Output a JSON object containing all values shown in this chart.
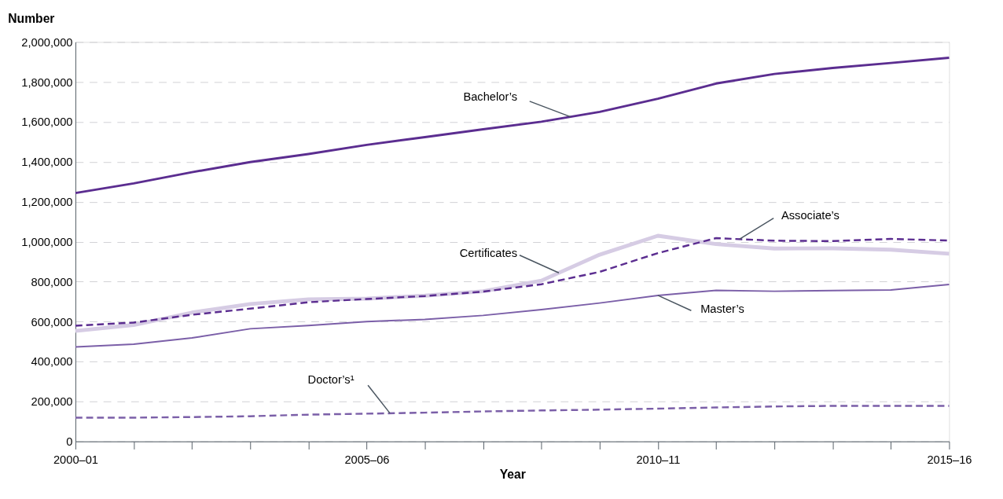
{
  "chart_data": {
    "type": "line",
    "xlabel": "Year",
    "ylabel": "Number",
    "categories": [
      "2000–01",
      null,
      null,
      null,
      null,
      "2005–06",
      null,
      null,
      null,
      null,
      "2010–11",
      null,
      null,
      null,
      null,
      "2015–16"
    ],
    "ylim": [
      0,
      2000000
    ],
    "yticks": [
      {
        "value": 0,
        "label": "0"
      },
      {
        "value": 200000,
        "label": "200,000"
      },
      {
        "value": 400000,
        "label": "400,000"
      },
      {
        "value": 600000,
        "label": "600,000"
      },
      {
        "value": 800000,
        "label": "800,000"
      },
      {
        "value": 1000000,
        "label": "1,000,000"
      },
      {
        "value": 1200000,
        "label": "1,200,000"
      },
      {
        "value": 1400000,
        "label": "1,400,000"
      },
      {
        "value": 1600000,
        "label": "1,600,000"
      },
      {
        "value": 1800000,
        "label": "1,800,000"
      },
      {
        "value": 2000000,
        "label": "2,000,000"
      }
    ],
    "grid": "y",
    "legend": false,
    "series": [
      {
        "name": "Bachelor’s",
        "color": "#5b2d90",
        "line_style": "solid",
        "values": [
          1244000,
          1292000,
          1348000,
          1399000,
          1439000,
          1485000,
          1524000,
          1563000,
          1601000,
          1650000,
          1716000,
          1792000,
          1840000,
          1870000,
          1895000,
          1921000
        ]
      },
      {
        "name": "Associate’s",
        "color": "#5b2d90",
        "line_style": "dashed",
        "values": [
          579000,
          595000,
          634000,
          665000,
          697000,
          713000,
          728000,
          750000,
          787000,
          849000,
          943000,
          1018000,
          1005000,
          1003000,
          1014000,
          1006000
        ]
      },
      {
        "name": "Certificates",
        "color": "#d6cce4",
        "line_style": "solid",
        "values": [
          553000,
          583000,
          645000,
          688000,
          711000,
          715000,
          730000,
          752000,
          805000,
          935000,
          1030000,
          988000,
          966000,
          967000,
          960000,
          940000
        ]
      },
      {
        "name": "Master’s",
        "color": "#7b5fa8",
        "line_style": "solid",
        "values": [
          473000,
          487000,
          518000,
          564000,
          580000,
          600000,
          611000,
          631000,
          660000,
          693000,
          731000,
          756000,
          752000,
          755000,
          758000,
          786000
        ]
      },
      {
        "name": "Doctor’s¹",
        "color": "#7b5fa8",
        "line_style": "dashed",
        "values": [
          119000,
          119000,
          122000,
          126000,
          134000,
          139000,
          144000,
          150000,
          155000,
          159000,
          164000,
          170000,
          175000,
          178000,
          178000,
          178000
        ]
      }
    ]
  }
}
